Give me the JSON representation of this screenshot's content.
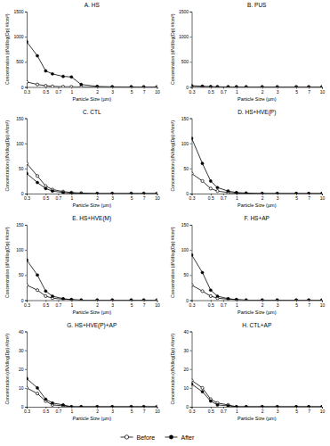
{
  "chart_data": [
    {
      "type": "line",
      "title": "A. HS",
      "x_label": "Particle Size (µm)",
      "y_label": "Concentration (dN/dlog(Dp) #/cm³)",
      "log": "x",
      "xlim": [
        0.3,
        10
      ],
      "xticks": [
        0.3,
        0.5,
        0.7,
        1,
        2,
        3,
        5,
        7,
        10
      ],
      "ylim": [
        0,
        1500
      ],
      "yticks": [
        0,
        500,
        1000,
        1500
      ],
      "legend": "bottom",
      "x": [
        0.3,
        0.4,
        0.5,
        0.6,
        0.8,
        1,
        1.3,
        2,
        3,
        5,
        7,
        10
      ],
      "series": [
        {
          "name": "Before",
          "color": "#000000",
          "marker": "circle-open",
          "line_style": "solid",
          "values": [
            100,
            50,
            25,
            12,
            6,
            4,
            2,
            1,
            0,
            0,
            0,
            0
          ]
        },
        {
          "name": "After",
          "color": "#000000",
          "marker": "circle",
          "line_style": "solid",
          "values": [
            900,
            620,
            320,
            260,
            210,
            200,
            50,
            10,
            3,
            1,
            0,
            0
          ]
        }
      ]
    },
    {
      "type": "line",
      "title": "B. PUS",
      "x_label": "Particle Size (µm)",
      "y_label": "Concentration (dN/dlog(Dp) #/cm³)",
      "log": "x",
      "xlim": [
        0.3,
        10
      ],
      "xticks": [
        0.3,
        0.5,
        0.7,
        1,
        2,
        3,
        5,
        7,
        10
      ],
      "ylim": [
        0,
        1500
      ],
      "yticks": [
        0,
        500,
        1000,
        1500
      ],
      "x": [
        0.3,
        0.4,
        0.5,
        0.6,
        0.8,
        1,
        1.3,
        2,
        3,
        5,
        7,
        10
      ],
      "series": [
        {
          "name": "Before",
          "color": "#000000",
          "marker": "circle-open",
          "line_style": "solid",
          "values": [
            8,
            4,
            2,
            1,
            0,
            0,
            0,
            0,
            0,
            0,
            0,
            0
          ]
        },
        {
          "name": "After",
          "color": "#000000",
          "marker": "circle",
          "line_style": "solid",
          "values": [
            25,
            14,
            6,
            3,
            1,
            1,
            0,
            0,
            0,
            0,
            0,
            0
          ]
        }
      ]
    },
    {
      "type": "line",
      "title": "C. CTL",
      "x_label": "Particle Size (µm)",
      "y_label": "Concentration (dN/dlog(Dp) #/cm³)",
      "log": "x",
      "xlim": [
        0.3,
        10
      ],
      "xticks": [
        0.3,
        0.5,
        0.7,
        1,
        2,
        3,
        5,
        7,
        10
      ],
      "ylim": [
        0,
        150
      ],
      "yticks": [
        0,
        50,
        100,
        150
      ],
      "x": [
        0.3,
        0.4,
        0.5,
        0.6,
        0.8,
        1,
        1.3,
        2,
        3,
        5,
        7,
        10
      ],
      "series": [
        {
          "name": "Before",
          "color": "#000000",
          "marker": "circle-open",
          "line_style": "solid",
          "values": [
            60,
            35,
            15,
            8,
            4,
            2,
            1,
            0,
            0,
            0,
            0,
            0
          ]
        },
        {
          "name": "After",
          "color": "#000000",
          "marker": "circle",
          "line_style": "solid",
          "values": [
            40,
            22,
            10,
            5,
            2,
            1,
            0,
            0,
            0,
            0,
            0,
            0
          ]
        }
      ]
    },
    {
      "type": "line",
      "title": "D. HS+HVE(P)",
      "x_label": "Particle Size (µm)",
      "y_label": "Concentration (dN/dlog(Dp) #/cm³)",
      "log": "x",
      "xlim": [
        0.3,
        10
      ],
      "xticks": [
        0.3,
        0.5,
        0.7,
        1,
        2,
        3,
        5,
        7,
        10
      ],
      "ylim": [
        0,
        150
      ],
      "yticks": [
        0,
        50,
        100,
        150
      ],
      "x": [
        0.3,
        0.4,
        0.5,
        0.6,
        0.8,
        1,
        1.3,
        2,
        3,
        5,
        7,
        10
      ],
      "series": [
        {
          "name": "Before",
          "color": "#000000",
          "marker": "circle-open",
          "line_style": "solid",
          "values": [
            40,
            25,
            10,
            5,
            2,
            1,
            0,
            0,
            0,
            0,
            0,
            0
          ]
        },
        {
          "name": "After",
          "color": "#000000",
          "marker": "circle",
          "line_style": "solid",
          "values": [
            110,
            60,
            25,
            12,
            5,
            2,
            1,
            0,
            0,
            0,
            0,
            0
          ]
        }
      ]
    },
    {
      "type": "line",
      "title": "E. HS+HVE(M)",
      "x_label": "Particle Size (µm)",
      "y_label": "Concentration (dN/dlog(Dp) #/cm³)",
      "log": "x",
      "xlim": [
        0.3,
        10
      ],
      "xticks": [
        0.3,
        0.5,
        0.7,
        1,
        2,
        3,
        5,
        7,
        10
      ],
      "ylim": [
        0,
        150
      ],
      "yticks": [
        0,
        50,
        100,
        150
      ],
      "x": [
        0.3,
        0.4,
        0.5,
        0.6,
        0.8,
        1,
        1.3,
        2,
        3,
        5,
        7,
        10
      ],
      "series": [
        {
          "name": "Before",
          "color": "#000000",
          "marker": "circle-open",
          "line_style": "solid",
          "values": [
            30,
            20,
            8,
            4,
            2,
            1,
            0,
            0,
            0,
            0,
            0,
            0
          ]
        },
        {
          "name": "After",
          "color": "#000000",
          "marker": "circle",
          "line_style": "solid",
          "values": [
            80,
            50,
            18,
            8,
            3,
            1,
            0,
            0,
            0,
            0,
            0,
            0
          ]
        }
      ]
    },
    {
      "type": "line",
      "title": "F. HS+AP",
      "x_label": "Particle Size (µm)",
      "y_label": "Concentration (dN/dlog(Dp) #/cm³)",
      "log": "x",
      "xlim": [
        0.3,
        10
      ],
      "xticks": [
        0.3,
        0.5,
        0.7,
        1,
        2,
        3,
        5,
        7,
        10
      ],
      "ylim": [
        0,
        150
      ],
      "yticks": [
        0,
        50,
        100,
        150
      ],
      "x": [
        0.3,
        0.4,
        0.5,
        0.6,
        0.8,
        1,
        1.3,
        2,
        3,
        5,
        7,
        10
      ],
      "series": [
        {
          "name": "Before",
          "color": "#000000",
          "marker": "circle-open",
          "line_style": "solid",
          "values": [
            30,
            18,
            8,
            4,
            2,
            1,
            0,
            0,
            0,
            0,
            0,
            0
          ]
        },
        {
          "name": "After",
          "color": "#000000",
          "marker": "circle",
          "line_style": "solid",
          "values": [
            90,
            55,
            20,
            8,
            3,
            1,
            0,
            0,
            0,
            0,
            0,
            0
          ]
        }
      ]
    },
    {
      "type": "line",
      "title": "G. HS+HVE(P)+AP",
      "x_label": "Particle Size (µm)",
      "y_label": "Concentration (dN/dlog(Dp) #/cm³)",
      "log": "x",
      "xlim": [
        0.3,
        10
      ],
      "xticks": [
        0.3,
        0.5,
        0.7,
        1,
        2,
        3,
        5,
        7,
        10
      ],
      "ylim": [
        0,
        40
      ],
      "yticks": [
        0,
        10,
        20,
        30,
        40
      ],
      "x": [
        0.3,
        0.4,
        0.5,
        0.6,
        0.8,
        1,
        1.3,
        2,
        3,
        5,
        7,
        10
      ],
      "series": [
        {
          "name": "Before",
          "color": "#000000",
          "marker": "circle-open",
          "line_style": "solid",
          "values": [
            10,
            7,
            3,
            1,
            0.5,
            0,
            0,
            0,
            0,
            0,
            0,
            0
          ]
        },
        {
          "name": "After",
          "color": "#000000",
          "marker": "circle",
          "line_style": "solid",
          "values": [
            15,
            10,
            4,
            2,
            1,
            0,
            0,
            0,
            0,
            0,
            0,
            0
          ]
        }
      ]
    },
    {
      "type": "line",
      "title": "H. CTL+AP",
      "x_label": "Particle Size (µm)",
      "y_label": "Concentration (dN/dlog(Dp) #/cm³)",
      "log": "x",
      "xlim": [
        0.3,
        10
      ],
      "xticks": [
        0.3,
        0.5,
        0.7,
        1,
        2,
        3,
        5,
        7,
        10
      ],
      "ylim": [
        0,
        40
      ],
      "yticks": [
        0,
        10,
        20,
        30,
        40
      ],
      "x": [
        0.3,
        0.4,
        0.5,
        0.6,
        0.8,
        1,
        1.3,
        2,
        3,
        5,
        7,
        10
      ],
      "series": [
        {
          "name": "Before",
          "color": "#000000",
          "marker": "circle-open",
          "line_style": "solid",
          "values": [
            14,
            10,
            4,
            2,
            1,
            0,
            0,
            0,
            0,
            0,
            0,
            0
          ]
        },
        {
          "name": "After",
          "color": "#000000",
          "marker": "circle",
          "line_style": "solid",
          "values": [
            12,
            8,
            3,
            1,
            0.5,
            0,
            0,
            0,
            0,
            0,
            0,
            0
          ]
        }
      ]
    }
  ]
}
